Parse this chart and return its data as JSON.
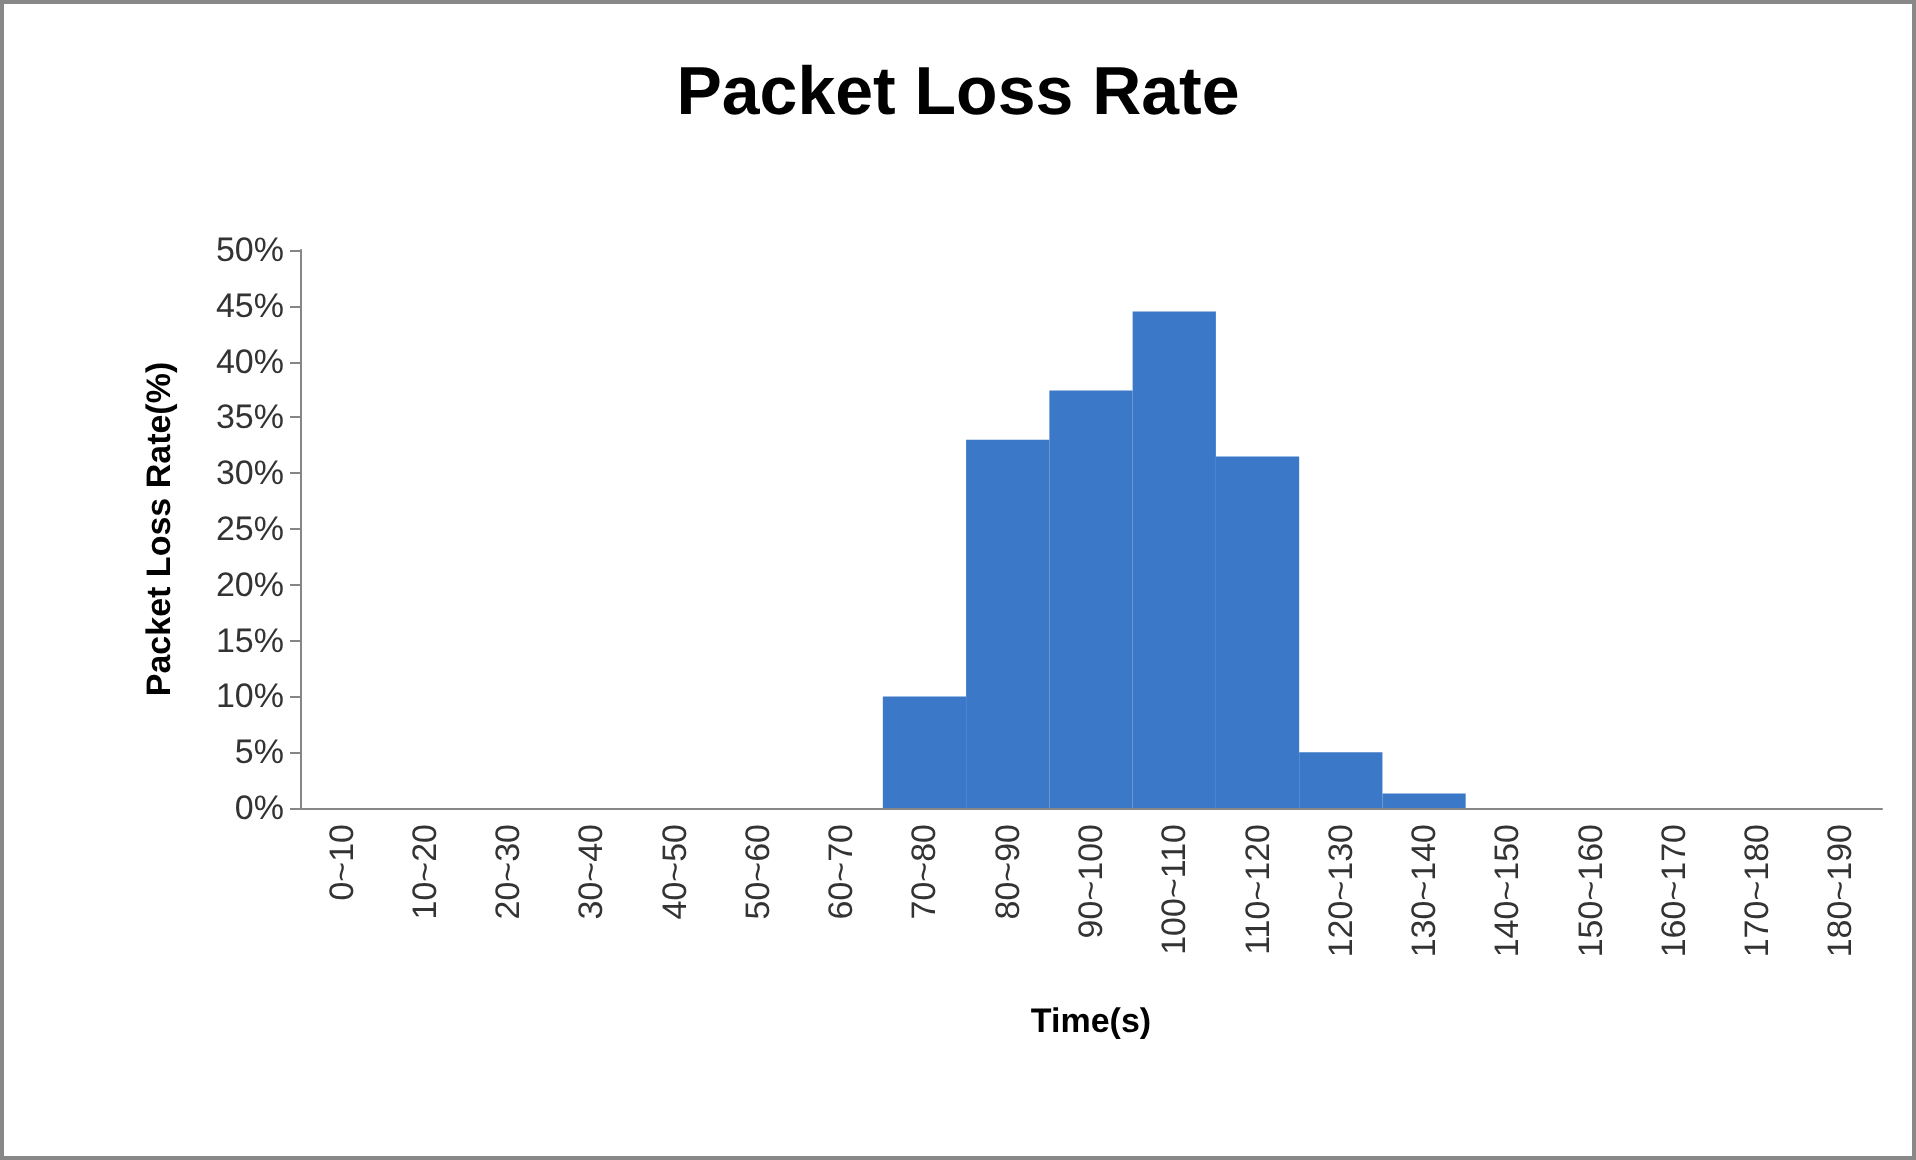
{
  "chart_data": {
    "type": "bar",
    "title": "Packet Loss Rate",
    "xlabel": "Time(s)",
    "ylabel": "Packet Loss Rate(%)",
    "categories": [
      "0~10",
      "10~20",
      "20~30",
      "30~40",
      "40~50",
      "50~60",
      "60~70",
      "70~80",
      "80~90",
      "90~100",
      "100~110",
      "110~120",
      "120~130",
      "130~140",
      "140~150",
      "150~160",
      "160~170",
      "170~180",
      "180~190"
    ],
    "values": [
      0,
      0,
      0,
      0,
      0,
      0,
      0,
      10,
      33,
      37.4,
      44.5,
      31.5,
      5,
      1.3,
      0,
      0,
      0,
      0,
      0
    ],
    "color": "#3c78c8",
    "ylim": [
      0,
      50
    ],
    "yticks": [
      {
        "value": 0,
        "label": "0%"
      },
      {
        "value": 5,
        "label": "5%"
      },
      {
        "value": 10,
        "label": "10%"
      },
      {
        "value": 15,
        "label": "15%"
      },
      {
        "value": 20,
        "label": "20%"
      },
      {
        "value": 25,
        "label": "25%"
      },
      {
        "value": 30,
        "label": "30%"
      },
      {
        "value": 35,
        "label": "35%"
      },
      {
        "value": 40,
        "label": "40%"
      },
      {
        "value": 45,
        "label": "45%"
      },
      {
        "value": 50,
        "label": "50%"
      }
    ],
    "grid": false
  }
}
